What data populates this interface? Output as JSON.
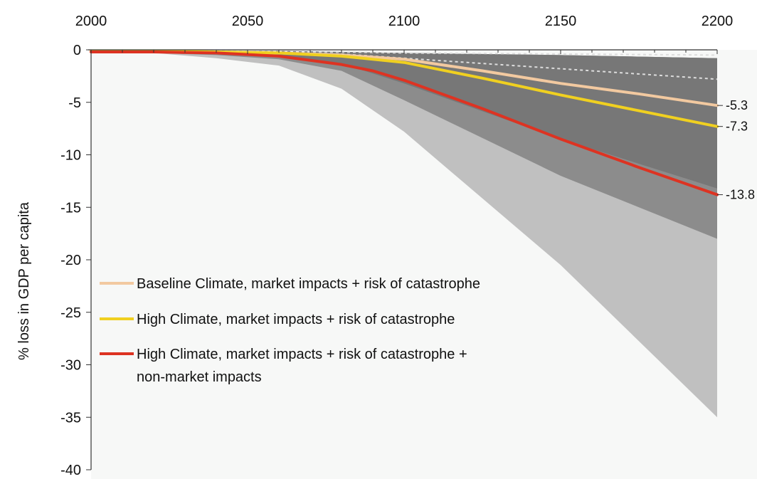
{
  "chart_data": {
    "type": "area",
    "title": "",
    "xlabel": "",
    "ylabel": "% loss in GDP per capita",
    "xlim": [
      2000,
      2200
    ],
    "ylim": [
      -40,
      0
    ],
    "x_ticks": [
      2000,
      2050,
      2100,
      2150,
      2200
    ],
    "y_ticks": [
      0,
      -5,
      -10,
      -15,
      -20,
      -25,
      -30,
      -35,
      -40
    ],
    "x_axis_position": "top",
    "grid": false,
    "legend_placement": "lower-left",
    "bands": [
      {
        "x": [
          2000,
          2020,
          2040,
          2060,
          2080,
          2100,
          2150,
          2200
        ],
        "upper": [
          -0.1,
          -0.1,
          -0.1,
          -0.1,
          -0.2,
          -0.3,
          -0.5,
          -0.8
        ],
        "lower": [
          -0.2,
          -0.3,
          -0.8,
          -1.5,
          -3.7,
          -7.8,
          -20.5,
          -35
        ],
        "color": "#c0c0c0"
      },
      {
        "x": [
          2000,
          2020,
          2040,
          2060,
          2080,
          2100,
          2150,
          2200
        ],
        "upper": [
          -0.1,
          -0.1,
          -0.1,
          -0.1,
          -0.2,
          -0.3,
          -0.5,
          -0.8
        ],
        "lower": [
          -0.2,
          -0.3,
          -0.5,
          -0.9,
          -2.0,
          -4.8,
          -12.0,
          -18.0
        ],
        "color": "#8c8c8c"
      },
      {
        "x": [
          2000,
          2020,
          2040,
          2060,
          2080,
          2100,
          2150,
          2200
        ],
        "upper": [
          -0.1,
          -0.1,
          -0.1,
          -0.1,
          -0.2,
          -0.3,
          -0.5,
          -0.8
        ],
        "lower": [
          -0.2,
          -0.25,
          -0.4,
          -0.7,
          -1.3,
          -3.2,
          -8.5,
          -13.2
        ],
        "color": "#777777"
      }
    ],
    "dashed_lines": [
      {
        "x": [
          2000,
          2040,
          2080,
          2100,
          2150,
          2200
        ],
        "values": [
          -0.1,
          -0.1,
          -0.2,
          -0.3,
          -0.4,
          -0.5
        ],
        "color": "#dddddd"
      },
      {
        "x": [
          2000,
          2040,
          2080,
          2100,
          2150,
          2200
        ],
        "values": [
          -0.1,
          -0.1,
          -0.4,
          -0.8,
          -1.8,
          -2.8
        ],
        "color": "#dddddd"
      }
    ],
    "series": [
      {
        "name": "Baseline Climate, market impacts + risk of catastrophe",
        "color": "#f2c9a0",
        "x": [
          2000,
          2020,
          2040,
          2060,
          2080,
          2100,
          2125,
          2150,
          2175,
          2200
        ],
        "values": [
          -0.1,
          -0.1,
          -0.2,
          -0.3,
          -0.5,
          -0.9,
          -2.0,
          -3.2,
          -4.2,
          -5.3
        ],
        "end_label": "-5.3"
      },
      {
        "name": "High Climate, market impacts + risk of catastrophe",
        "color": "#f0d020",
        "x": [
          2000,
          2020,
          2040,
          2060,
          2080,
          2100,
          2125,
          2150,
          2175,
          2200
        ],
        "values": [
          -0.1,
          -0.1,
          -0.2,
          -0.3,
          -0.6,
          -1.2,
          -2.7,
          -4.3,
          -5.8,
          -7.3
        ],
        "end_label": "-7.3"
      },
      {
        "name": "High Climate, market impacts + risk of catastrophe + non-market impacts",
        "legend_lines": [
          "High Climate, market impacts + risk of catastrophe +",
          "non-market impacts"
        ],
        "color": "#dd3322",
        "x": [
          2000,
          2020,
          2040,
          2060,
          2080,
          2090,
          2100,
          2125,
          2150,
          2175,
          2200
        ],
        "values": [
          -0.2,
          -0.2,
          -0.3,
          -0.6,
          -1.4,
          -2.0,
          -2.9,
          -5.6,
          -8.5,
          -11.2,
          -13.8
        ],
        "end_label": "-13.8"
      }
    ]
  }
}
